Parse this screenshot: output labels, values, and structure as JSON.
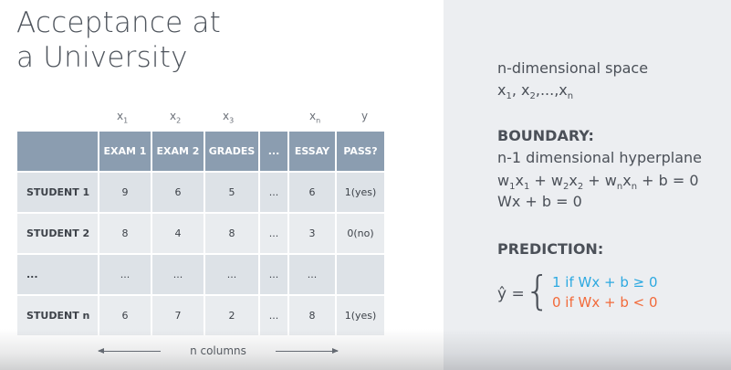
{
  "title": [
    "Acceptance at",
    "a University"
  ],
  "columns_x": [
    {
      "base": "x",
      "sub": "1"
    },
    {
      "base": "x",
      "sub": "2"
    },
    {
      "base": "x",
      "sub": "3"
    },
    {
      "base": "x",
      "sub": "n"
    },
    {
      "base": "y",
      "sub": ""
    }
  ],
  "table": {
    "headers": [
      "",
      "EXAM 1",
      "EXAM 2",
      "GRADES",
      "...",
      "ESSAY",
      "PASS?"
    ],
    "rows": [
      [
        "STUDENT 1",
        "9",
        "6",
        "5",
        "...",
        "6",
        "1(yes)"
      ],
      [
        "STUDENT 2",
        "8",
        "4",
        "8",
        "...",
        "3",
        "0(no)"
      ],
      [
        "...",
        "...",
        "...",
        "...",
        "...",
        "...",
        ""
      ],
      [
        "STUDENT n",
        "6",
        "7",
        "2",
        "...",
        "8",
        "1(yes)"
      ]
    ]
  },
  "n_columns_label": "n columns",
  "right": {
    "space_label": "n-dimensional space",
    "space_vars": "x1, x2,...,xn",
    "boundary_label": "BOUNDARY:",
    "hyperplane_label": "n-1 dimensional hyperplane",
    "equation_expanded": "w1x1 + w2x2 + wnxn + b = 0",
    "equation_compact": "Wx + b = 0",
    "prediction_label": "PREDICTION:",
    "yhat": "ŷ =",
    "case_positive": "1 if Wx + b ≥ 0",
    "case_negative": "0 if Wx + b < 0"
  },
  "colors": {
    "header_bg": "#8b9db0",
    "positive": "#2ca9e1",
    "negative": "#f26a3a",
    "right_panel_bg": "#eceef1"
  }
}
